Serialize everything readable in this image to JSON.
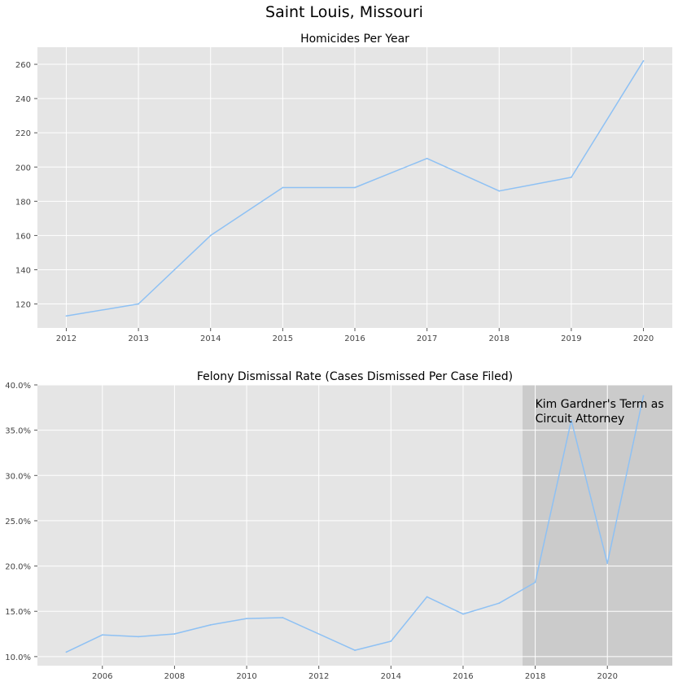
{
  "figure_title": "Saint Louis, Missouri",
  "colors": {
    "background": "#ffffff",
    "axes_face": "#e5e5e5",
    "grid": "#ffffff",
    "line": "#8ec1f4",
    "shade": "#cbcbcb"
  },
  "chart_data": [
    {
      "type": "line",
      "title": "Homicides Per Year",
      "xlabel": "",
      "ylabel": "",
      "grid": true,
      "x": [
        2012,
        2013,
        2014,
        2015,
        2016,
        2017,
        2018,
        2019,
        2020
      ],
      "values": [
        113,
        120,
        160,
        188,
        188,
        205,
        186,
        194,
        262
      ],
      "xlim": [
        2011.6,
        2020.4
      ],
      "ylim": [
        106,
        270
      ],
      "xticks": [
        2012,
        2013,
        2014,
        2015,
        2016,
        2017,
        2018,
        2019,
        2020
      ],
      "yticks": [
        120,
        140,
        160,
        180,
        200,
        220,
        240,
        260
      ],
      "ytick_format": "int"
    },
    {
      "type": "line",
      "title": "Felony Dismissal Rate (Cases Dismissed Per Case Filed)",
      "xlabel": "",
      "ylabel": "",
      "grid": true,
      "x": [
        2005,
        2006,
        2007,
        2008,
        2009,
        2010,
        2011,
        2013,
        2014,
        2015,
        2016,
        2017,
        2018,
        2019,
        2020,
        2021
      ],
      "values": [
        0.105,
        0.124,
        0.122,
        0.125,
        0.135,
        0.142,
        0.143,
        0.107,
        0.117,
        0.166,
        0.147,
        0.159,
        0.182,
        0.361,
        0.203,
        0.388
      ],
      "xlim": [
        2004.2,
        2021.8
      ],
      "ylim": [
        0.09,
        0.4
      ],
      "xticks": [
        2006,
        2008,
        2010,
        2012,
        2014,
        2016,
        2018,
        2020
      ],
      "yticks": [
        0.1,
        0.15,
        0.2,
        0.25,
        0.3,
        0.35,
        0.4
      ],
      "ytick_format": "pct",
      "shaded_span": {
        "x_start": 2017.65,
        "x_end": 2021.8
      },
      "annotation": {
        "lines": [
          "Kim Gardner's Term as",
          "Circuit Attorney"
        ],
        "x": 2018,
        "y": 0.375
      }
    }
  ]
}
